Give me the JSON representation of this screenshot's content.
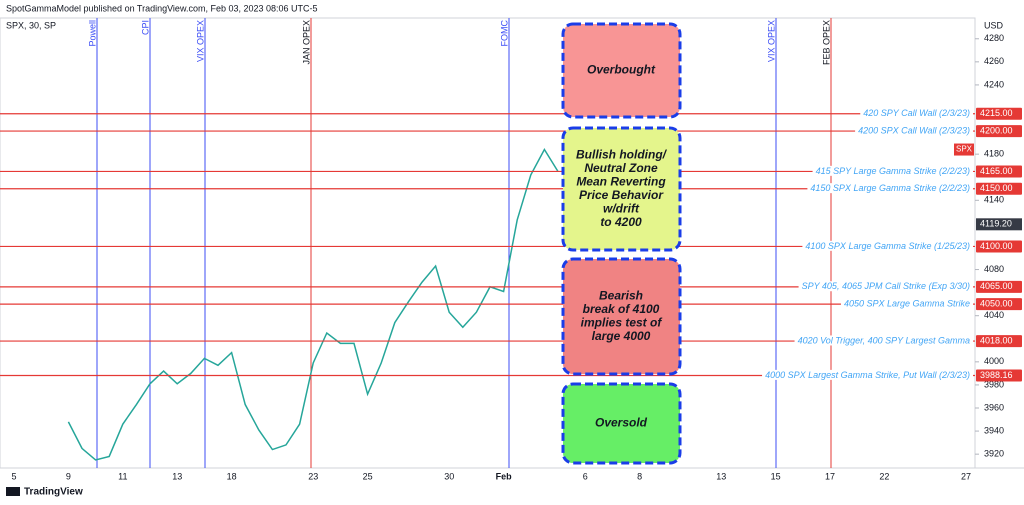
{
  "header": {
    "publisher": "SpotGammaModel published on TradingView.com, Feb 03, 2023 08:06 UTC-5",
    "symbol": "SPX, 30, SP",
    "currency": "USD",
    "footer": "TradingView"
  },
  "chart_data": {
    "type": "line",
    "categories": [
      "5",
      null,
      null,
      null,
      "9",
      null,
      null,
      null,
      "11",
      null,
      null,
      null,
      "13",
      null,
      null,
      null,
      "18",
      null,
      null,
      null,
      null,
      null,
      "23",
      null,
      null,
      null,
      "25",
      null,
      null,
      null,
      null,
      null,
      "30",
      null,
      null,
      null,
      "Feb",
      null,
      null,
      null,
      null,
      null,
      "6",
      null,
      null,
      null,
      "8",
      null,
      null,
      null,
      null,
      null,
      "13",
      null,
      null,
      null,
      "15",
      null,
      null,
      null,
      "17",
      null,
      null,
      null,
      "22",
      null,
      null,
      null,
      null,
      null,
      "27"
    ],
    "series": [
      {
        "name": "SPX",
        "color": "#26a69a",
        "values": [
          null,
          null,
          null,
          null,
          3948,
          3925,
          3915,
          3918,
          3946,
          3963,
          3981,
          3992,
          3981,
          3990,
          4003,
          3997,
          4008,
          3963,
          3941,
          3924,
          3928,
          3946,
          3999,
          4025,
          4016,
          4016,
          3972,
          3999,
          4034,
          4052,
          4069,
          4083,
          4043,
          4030,
          4043,
          4065,
          4061,
          4123,
          4162,
          4184,
          4165,
          null,
          null,
          null,
          null,
          null,
          null,
          null,
          null,
          null,
          null,
          null,
          null,
          null,
          null,
          null,
          null,
          null,
          null,
          null,
          null,
          null,
          null,
          null,
          null,
          null,
          null,
          null,
          null,
          null,
          null
        ]
      }
    ],
    "ylim": [
      3908,
      4298
    ],
    "yticks": [
      3920,
      3940,
      3960,
      3980,
      4000,
      4040,
      4080,
      4140,
      4180,
      4240,
      4260,
      4280
    ],
    "last_price": {
      "value": 4119.2,
      "label": "4119.20"
    },
    "events": [
      {
        "label": "Powell",
        "color": "#3d4ef5"
      },
      {
        "label": "CPI",
        "color": "#3d4ef5"
      },
      {
        "label": "VIX OPEX",
        "color": "#3d4ef5"
      },
      {
        "label": "JAN OPEX",
        "color": "#e53935"
      },
      {
        "label": "FOMC",
        "color": "#3d4ef5"
      },
      {
        "label": "VIX OPEX",
        "color": "#3d4ef5"
      },
      {
        "label": "FEB OPEX",
        "color": "#e53935"
      }
    ],
    "levels": [
      {
        "value": 4215,
        "label": "4215.00",
        "text": "420 SPY Call Wall (2/3/23)"
      },
      {
        "value": 4200,
        "label": "4200.00",
        "text": "4200 SPX Call Wall (2/3/23)"
      },
      {
        "value": 4165,
        "label": "4165.00",
        "text": "415 SPY Large Gamma Strike (2/2/23)"
      },
      {
        "value": 4150,
        "label": "4150.00",
        "text": "4150 SPX Large Gamma Strike (2/2/23)"
      },
      {
        "value": 4100,
        "label": "4100.00",
        "text": "4100 SPX Large Gamma Strike (1/25/23)"
      },
      {
        "value": 4065,
        "label": "4065.00",
        "text": "SPY 405, 4065 JPM Call Strike (Exp 3/30)"
      },
      {
        "value": 4050,
        "label": "4050.00",
        "text": "4050 SPX Large Gamma Strike"
      },
      {
        "value": 4018,
        "label": "4018.00",
        "text": "4020 Vol Trigger, 400 SPY Largest Gamma"
      },
      {
        "value": 3988.16,
        "label": "3988.16",
        "text": "4000 SPX Largest Gamma Strike, Put Wall (2/3/23)"
      }
    ],
    "level_color": "#e53935",
    "zones": [
      {
        "lines": [
          "Overbought"
        ],
        "color": "#f89595"
      },
      {
        "lines": [
          "Bullish holding/",
          "Neutral Zone",
          "Mean Reverting",
          "Price Behavior",
          "w/drift",
          "to 4200"
        ],
        "color": "#e4f58c"
      },
      {
        "lines": [
          "Bearish",
          "break of 4100",
          "implies test of",
          "large 4000"
        ],
        "color": "#f08383"
      },
      {
        "lines": [
          "Oversold"
        ],
        "color": "#66ee66"
      }
    ]
  }
}
